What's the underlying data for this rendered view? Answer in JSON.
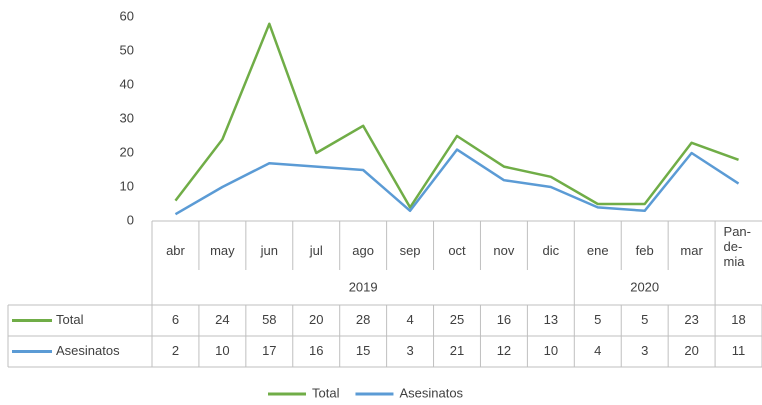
{
  "chart_data": {
    "type": "line",
    "categories": [
      "abr",
      "may",
      "jun",
      "jul",
      "ago",
      "sep",
      "oct",
      "nov",
      "dic",
      "ene",
      "feb",
      "mar",
      "Pan-de-mia"
    ],
    "groups": [
      {
        "label": "2019",
        "count": 9
      },
      {
        "label": "2020",
        "count": 3
      }
    ],
    "series": [
      {
        "name": "Total",
        "color": "#70ad47",
        "values": [
          6,
          24,
          58,
          20,
          28,
          4,
          25,
          16,
          13,
          5,
          5,
          23,
          18
        ]
      },
      {
        "name": "Asesinatos",
        "color": "#5b9bd5",
        "values": [
          2,
          10,
          17,
          16,
          15,
          3,
          21,
          12,
          10,
          4,
          3,
          20,
          11
        ]
      }
    ],
    "ylim": [
      0,
      60
    ],
    "yticks": [
      0,
      10,
      20,
      30,
      40,
      50,
      60
    ],
    "grid": false,
    "data_table": true,
    "legend": "bottom"
  }
}
